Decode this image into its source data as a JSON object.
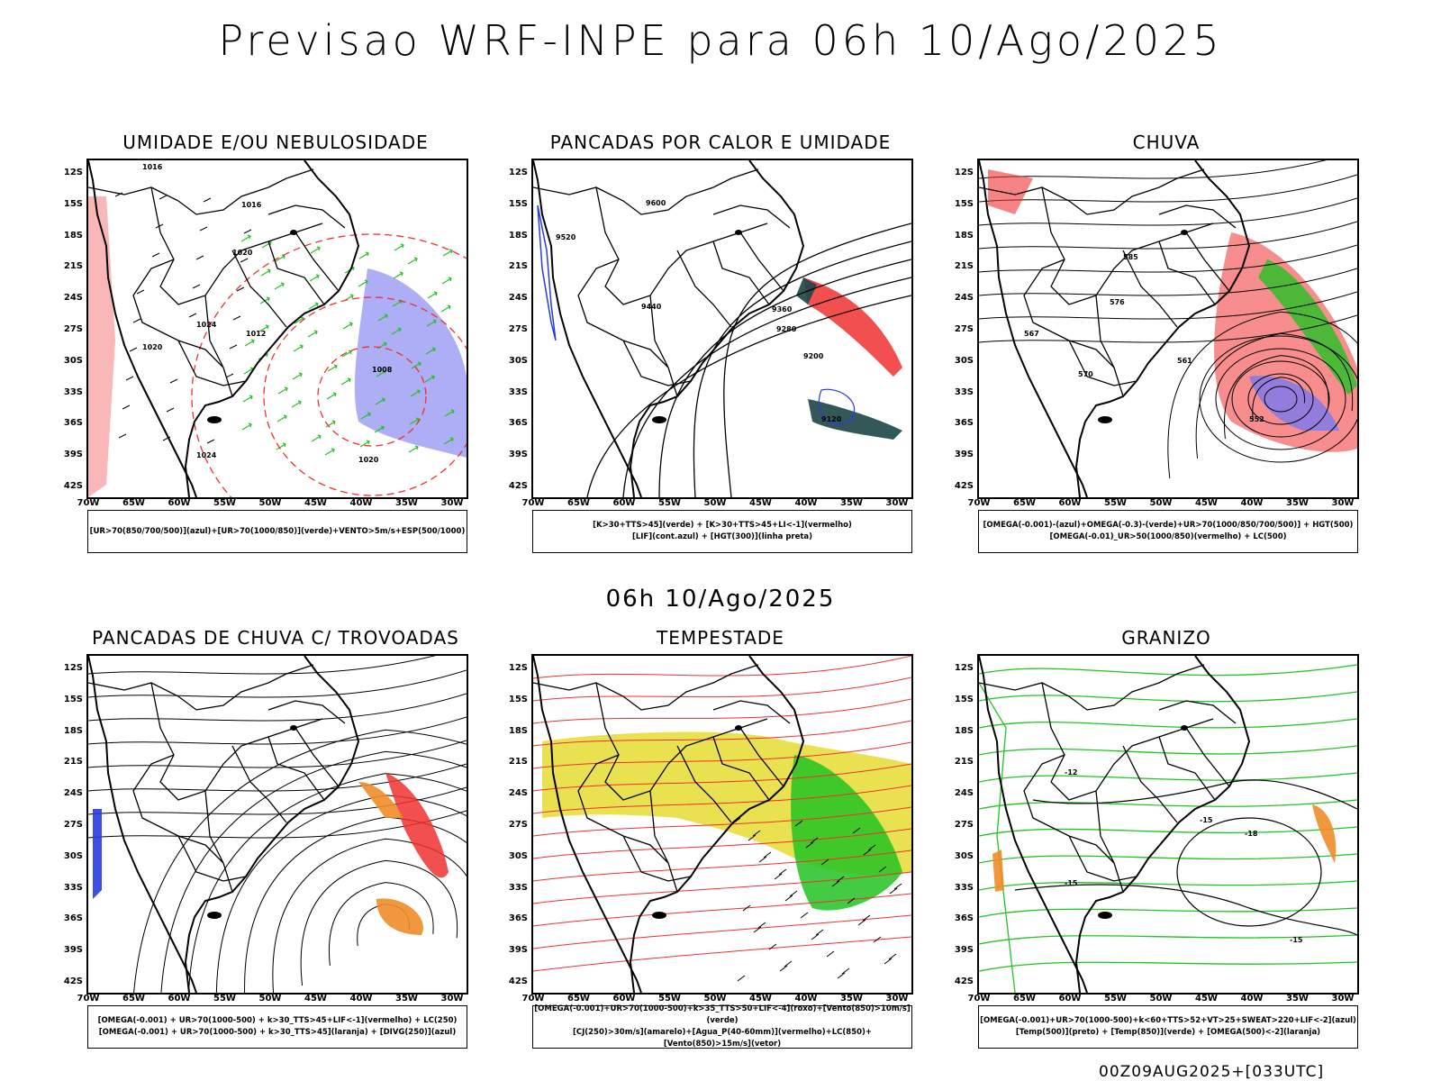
{
  "header": {
    "title": "Previsao WRF-INPE  para 06h 10/Ago/2025",
    "subtitle": "06h 10/Ago/2025",
    "footer": "00Z09AUG2025+[033UTC]"
  },
  "axes": {
    "lat_labels": [
      "12S",
      "15S",
      "18S",
      "21S",
      "24S",
      "27S",
      "30S",
      "33S",
      "36S",
      "39S",
      "42S"
    ],
    "lon_labels": [
      "70W",
      "65W",
      "60W",
      "55W",
      "50W",
      "45W",
      "40W",
      "35W",
      "30W"
    ]
  },
  "panels": [
    {
      "title": "UMIDADE E/OU NEBULOSIDADE",
      "legend": [
        "[UR>70(850/700/500)](azul)+[UR>70(1000/850)](verde)+VENTO>5m/s+ESP(500/1000)"
      ]
    },
    {
      "title": "PANCADAS POR CALOR E UMIDADE",
      "legend": [
        "[K>30+TTS>45](verde) + [K>30+TTS>45+LI<-1](vermelho)",
        "[LIF](cont.azul) + [HGT(300)](linha preta)"
      ]
    },
    {
      "title": "CHUVA",
      "legend": [
        "[OMEGA(-0.001)-(azul)+OMEGA(-0.3)-(verde)+UR>70(1000/850/700/500)] + HGT(500)",
        "[OMEGA(-0.01)_UR>50(1000/850)(vermelho) + LC(500)"
      ]
    },
    {
      "title": "PANCADAS DE CHUVA C/ TROVOADAS",
      "legend": [
        "[OMEGA(-0.001) + UR>70(1000-500) + k>30_TTS>45+LIF<-1](vermelho) + LC(250)",
        "[OMEGA(-0.001) + UR>70(1000-500) + k>30_TTS>45](laranja) + [DIVG(250)](azul)"
      ]
    },
    {
      "title": "TEMPESTADE",
      "legend": [
        "[OMEGA(-0.001)+UR>70(1000-500)+k>35_TTS>50+LIF<-4](roxo)+[Vento(850)>10m/s](verde)",
        "[CJ(250)>30m/s](amarelo)+[Agua_P(40-60mm)](vermelho)+LC(850)+[Vento(850)>15m/s](vetor)"
      ]
    },
    {
      "title": "GRANIZO",
      "legend": [
        "[OMEGA(-0.001)+UR>70(1000-500)+k<60+TTS>52+VT>25+SWEAT>220+LIF<-2](azul)",
        "[Temp(500)](preto) + [Temp(850)](verde) + [OMEGA(500)<-2](laranja)"
      ]
    }
  ],
  "contour_labels": {
    "p1": [
      "1016",
      "1016",
      "1020",
      "1024",
      "1012",
      "1008",
      "1020",
      "1024",
      "1020"
    ],
    "p2": [
      "9600",
      "9520",
      "9440",
      "9360",
      "9280",
      "9200",
      "9120"
    ],
    "p3": [
      "585",
      "576",
      "567",
      "570",
      "561",
      "552"
    ],
    "p6": [
      "-12",
      "-15",
      "-18",
      "-15",
      "-15"
    ]
  },
  "colors": {
    "blue_humidity": "#7878f0",
    "green": "#22c322",
    "red": "#f03030",
    "orange": "#f08c28",
    "yellow": "#e6dc32",
    "dark_teal": "#1e4646"
  }
}
